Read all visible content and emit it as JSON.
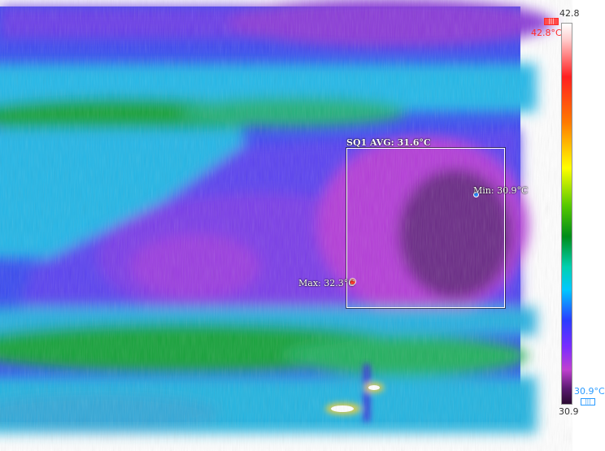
{
  "roi": {
    "label": "SQ1 AVG: 31.6°C"
  },
  "markers": {
    "max_label": "Max: 32.3°C",
    "min_label": "Min: 30.9°C"
  },
  "scale": {
    "top_value": "42.8",
    "bottom_value": "30.9",
    "max_indicator": "42.8°C",
    "min_indicator": "30.9°C",
    "max_flag_icon": "battery-high-icon",
    "min_flag_icon": "battery-low-icon",
    "palette_colors": [
      "#ffffff",
      "#ff2020",
      "#ff7a00",
      "#ffff00",
      "#008c1a",
      "#00c8ff",
      "#2a3cff",
      "#c040d0",
      "#2a0a30"
    ]
  }
}
